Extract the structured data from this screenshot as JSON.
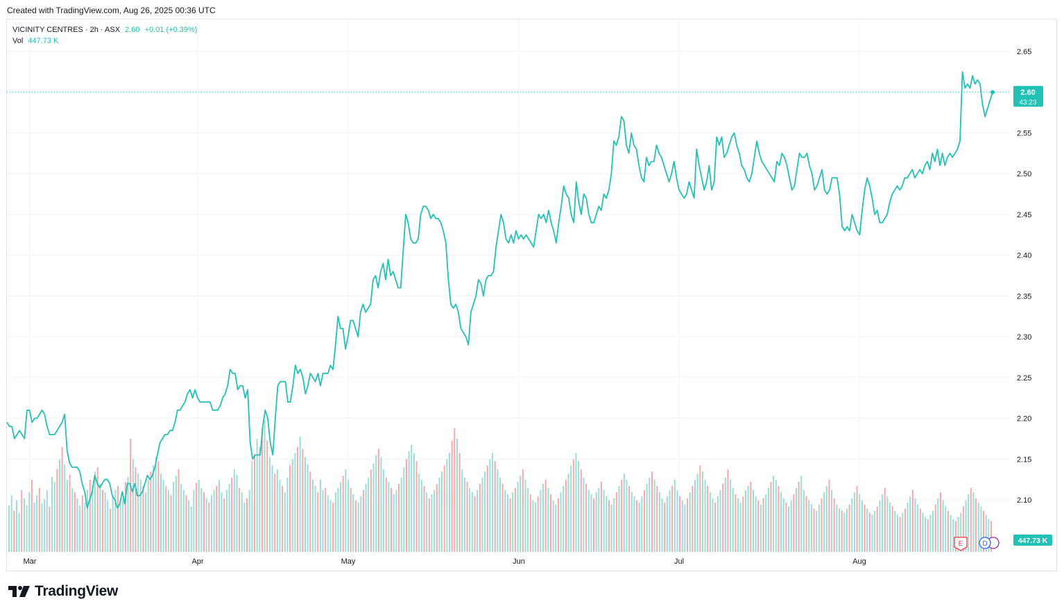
{
  "header": {
    "created_text": "Created with TradingView.com, Aug 26, 2025 00:36 UTC"
  },
  "legend": {
    "symbol": "VICINITY CENTRES · 2h · ASX",
    "last": "2.60",
    "change": "+0.01 (+0.39%)",
    "vol_label": "Vol",
    "vol_value": "447.73 K"
  },
  "price_tag": {
    "price": "2.60",
    "countdown": "43:23"
  },
  "volume_tag": "447.73 K",
  "event_markers": [
    {
      "letter": "E",
      "color": "#f23645"
    },
    {
      "letter": "D",
      "color": "#2962ff"
    }
  ],
  "brand": {
    "name": "TradingView"
  },
  "colors": {
    "line": "#22c1b5",
    "vol_up": "#9fdcd7",
    "vol_down": "#f7a9a7",
    "grid": "#f0f3fa"
  },
  "chart_data": {
    "type": "line",
    "title": "VICINITY CENTRES · 2h · ASX",
    "xlabel": "",
    "ylabel": "",
    "x_ticks": [
      "Mar",
      "Apr",
      "May",
      "Jun",
      "Jul",
      "Aug"
    ],
    "y_ticks": [
      "2.65",
      "2.60",
      "2.55",
      "2.50",
      "2.45",
      "2.40",
      "2.35",
      "2.30",
      "2.25",
      "2.20",
      "2.15",
      "2.10"
    ],
    "ylim": [
      2.05,
      2.67
    ],
    "grid": true,
    "series": [
      {
        "values": [
          2.195,
          2.19,
          2.19,
          2.175,
          2.18,
          2.185,
          2.18,
          2.175,
          2.21,
          2.21,
          2.195,
          2.2,
          2.2,
          2.205,
          2.21,
          2.205,
          2.19,
          2.18,
          2.18,
          2.18,
          2.185,
          2.19,
          2.195,
          2.205,
          2.16,
          2.145,
          2.14,
          2.14,
          2.14,
          2.135,
          2.12,
          2.11,
          2.09,
          2.1,
          2.11,
          2.13,
          2.12,
          2.115,
          2.12,
          2.125,
          2.125,
          2.12,
          2.105,
          2.1,
          2.09,
          2.095,
          2.11,
          2.095,
          2.12,
          2.12,
          2.11,
          2.12,
          2.105,
          2.105,
          2.11,
          2.12,
          2.13,
          2.125,
          2.13,
          2.14,
          2.155,
          2.17,
          2.175,
          2.18,
          2.18,
          2.185,
          2.185,
          2.195,
          2.21,
          2.21,
          2.215,
          2.22,
          2.23,
          2.235,
          2.225,
          2.235,
          2.225,
          2.22,
          2.22,
          2.22,
          2.22,
          2.22,
          2.21,
          2.21,
          2.21,
          2.215,
          2.225,
          2.23,
          2.24,
          2.26,
          2.255,
          2.255,
          2.235,
          2.24,
          2.24,
          2.225,
          2.235,
          2.17,
          2.15,
          2.155,
          2.155,
          2.155,
          2.19,
          2.21,
          2.2,
          2.17,
          2.155,
          2.2,
          2.24,
          2.245,
          2.245,
          2.245,
          2.22,
          2.22,
          2.24,
          2.265,
          2.255,
          2.26,
          2.25,
          2.23,
          2.24,
          2.255,
          2.25,
          2.245,
          2.255,
          2.24,
          2.255,
          2.255,
          2.255,
          2.265,
          2.26,
          2.29,
          2.325,
          2.31,
          2.31,
          2.285,
          2.3,
          2.32,
          2.32,
          2.31,
          2.3,
          2.33,
          2.34,
          2.33,
          2.335,
          2.34,
          2.37,
          2.375,
          2.36,
          2.38,
          2.39,
          2.37,
          2.395,
          2.375,
          2.38,
          2.37,
          2.36,
          2.36,
          2.405,
          2.45,
          2.44,
          2.42,
          2.415,
          2.415,
          2.42,
          2.45,
          2.46,
          2.46,
          2.455,
          2.445,
          2.45,
          2.445,
          2.445,
          2.44,
          2.43,
          2.415,
          2.37,
          2.34,
          2.335,
          2.34,
          2.33,
          2.31,
          2.305,
          2.3,
          2.29,
          2.33,
          2.34,
          2.35,
          2.37,
          2.365,
          2.35,
          2.37,
          2.375,
          2.375,
          2.38,
          2.41,
          2.43,
          2.45,
          2.44,
          2.42,
          2.415,
          2.425,
          2.415,
          2.43,
          2.42,
          2.425,
          2.42,
          2.425,
          2.42,
          2.415,
          2.41,
          2.43,
          2.45,
          2.445,
          2.45,
          2.44,
          2.455,
          2.44,
          2.43,
          2.415,
          2.44,
          2.46,
          2.485,
          2.475,
          2.47,
          2.45,
          2.44,
          2.49,
          2.465,
          2.45,
          2.475,
          2.47,
          2.45,
          2.44,
          2.44,
          2.45,
          2.46,
          2.455,
          2.475,
          2.47,
          2.48,
          2.5,
          2.54,
          2.535,
          2.545,
          2.57,
          2.565,
          2.535,
          2.525,
          2.55,
          2.535,
          2.53,
          2.51,
          2.495,
          2.49,
          2.52,
          2.51,
          2.515,
          2.515,
          2.535,
          2.525,
          2.52,
          2.51,
          2.5,
          2.49,
          2.5,
          2.515,
          2.495,
          2.48,
          2.475,
          2.47,
          2.475,
          2.49,
          2.48,
          2.47,
          2.53,
          2.51,
          2.495,
          2.48,
          2.49,
          2.51,
          2.48,
          2.49,
          2.545,
          2.535,
          2.545,
          2.52,
          2.525,
          2.535,
          2.545,
          2.55,
          2.535,
          2.525,
          2.51,
          2.505,
          2.495,
          2.49,
          2.5,
          2.52,
          2.54,
          2.525,
          2.515,
          2.51,
          2.505,
          2.5,
          2.495,
          2.49,
          2.515,
          2.51,
          2.525,
          2.52,
          2.51,
          2.495,
          2.48,
          2.485,
          2.505,
          2.525,
          2.52,
          2.52,
          2.525,
          2.51,
          2.5,
          2.48,
          2.485,
          2.495,
          2.505,
          2.48,
          2.475,
          2.48,
          2.495,
          2.495,
          2.495,
          2.475,
          2.435,
          2.43,
          2.435,
          2.43,
          2.45,
          2.44,
          2.43,
          2.425,
          2.455,
          2.48,
          2.495,
          2.485,
          2.47,
          2.45,
          2.455,
          2.44,
          2.44,
          2.445,
          2.45,
          2.465,
          2.475,
          2.48,
          2.485,
          2.48,
          2.485,
          2.495,
          2.495,
          2.5,
          2.505,
          2.495,
          2.5,
          2.505,
          2.5,
          2.51,
          2.515,
          2.505,
          2.525,
          2.515,
          2.53,
          2.51,
          2.525,
          2.51,
          2.52,
          2.525,
          2.52,
          2.525,
          2.53,
          2.54,
          2.625,
          2.605,
          2.61,
          2.605,
          2.62,
          2.61,
          2.615,
          2.61,
          2.585,
          2.57,
          2.58,
          2.59,
          2.6
        ]
      }
    ],
    "volume": {
      "values": [
        45,
        55,
        40,
        50,
        38,
        60,
        52,
        45,
        58,
        70,
        48,
        55,
        62,
        47,
        51,
        60,
        44,
        73,
        68,
        80,
        90,
        102,
        85,
        70,
        75,
        62,
        58,
        52,
        45,
        55,
        48,
        60,
        70,
        65,
        78,
        82,
        66,
        60,
        58,
        50,
        42,
        55,
        60,
        64,
        47,
        52,
        68,
        73,
        110,
        90,
        82,
        76,
        70,
        64,
        58,
        70,
        78,
        84,
        92,
        88,
        76,
        70,
        64,
        60,
        55,
        68,
        74,
        80,
        66,
        60,
        55,
        50,
        44,
        60,
        67,
        70,
        62,
        58,
        52,
        48,
        55,
        60,
        64,
        70,
        58,
        52,
        60,
        66,
        72,
        80,
        75,
        62,
        58,
        48,
        52,
        60,
        88,
        95,
        110,
        102,
        120,
        128,
        108,
        92,
        84,
        76,
        80,
        70,
        64,
        58,
        72,
        84,
        90,
        96,
        102,
        112,
        100,
        92,
        85,
        78,
        70,
        64,
        58,
        70,
        60,
        62,
        55,
        50,
        48,
        58,
        62,
        68,
        74,
        80,
        70,
        62,
        56,
        50,
        48,
        54,
        60,
        66,
        72,
        80,
        86,
        94,
        100,
        92,
        80,
        72,
        68,
        62,
        56,
        60,
        66,
        72,
        82,
        90,
        98,
        104,
        96,
        88,
        76,
        70,
        64,
        58,
        52,
        56,
        60,
        66,
        72,
        78,
        84,
        90,
        96,
        108,
        120,
        110,
        96,
        80,
        72,
        68,
        62,
        58,
        54,
        60,
        66,
        72,
        78,
        84,
        90,
        96,
        88,
        80,
        72,
        66,
        60,
        56,
        52,
        58,
        62,
        68,
        74,
        80,
        70,
        62,
        56,
        50,
        48,
        54,
        60,
        66,
        70,
        62,
        56,
        50,
        46,
        52,
        58,
        64,
        70,
        76,
        84,
        90,
        96,
        88,
        80,
        72,
        66,
        60,
        56,
        52,
        58,
        62,
        68,
        60,
        54,
        50,
        46,
        52,
        58,
        64,
        70,
        76,
        70,
        64,
        58,
        54,
        50,
        48,
        54,
        60,
        66,
        72,
        78,
        70,
        64,
        58,
        52,
        48,
        54,
        60,
        64,
        70,
        60,
        54,
        50,
        46,
        52,
        58,
        64,
        70,
        76,
        84,
        78,
        70,
        64,
        58,
        52,
        48,
        54,
        60,
        66,
        72,
        80,
        70,
        62,
        56,
        52,
        48,
        54,
        60,
        64,
        68,
        60,
        54,
        50,
        46,
        52,
        56,
        62,
        68,
        74,
        70,
        64,
        58,
        52,
        48,
        44,
        50,
        56,
        62,
        68,
        74,
        60,
        54,
        50,
        46,
        42,
        40,
        46,
        52,
        58,
        64,
        70,
        60,
        52,
        46,
        42,
        40,
        38,
        42,
        46,
        52,
        58,
        64,
        56,
        50,
        46,
        42,
        38,
        36,
        40,
        44,
        50,
        56,
        62,
        54,
        48,
        44,
        40,
        36,
        34,
        38,
        42,
        48,
        54,
        60,
        52,
        46,
        42,
        38,
        34,
        32,
        36,
        40,
        46,
        52,
        58,
        50,
        44,
        40,
        36,
        32,
        30,
        34,
        38,
        44,
        50,
        56,
        62,
        58,
        52,
        48,
        44,
        40,
        36,
        32,
        30
      ],
      "down": [
        false,
        false,
        true,
        false,
        false,
        true,
        false,
        false,
        false,
        true,
        false,
        false,
        true,
        false,
        false,
        false,
        true,
        false,
        false,
        true,
        false,
        true,
        false,
        false,
        true,
        false,
        true,
        false,
        false,
        true,
        false,
        false,
        true,
        false,
        false,
        true,
        false,
        true,
        false,
        false,
        true,
        false,
        false,
        true,
        false,
        false,
        true,
        false,
        true,
        false,
        true,
        false,
        false,
        true,
        false,
        false,
        true,
        false,
        false,
        true,
        false,
        false,
        true,
        false,
        true,
        false,
        false,
        true,
        false,
        false,
        true,
        false,
        false,
        false,
        true,
        false,
        false,
        true,
        false,
        true,
        false,
        false,
        true,
        false,
        false,
        true,
        false,
        false,
        true,
        false,
        false,
        true,
        false,
        false,
        true,
        false,
        false,
        true,
        false,
        false,
        true,
        false,
        true,
        false,
        false,
        true,
        false,
        false,
        true,
        false,
        false,
        true,
        false,
        false,
        true,
        false,
        true,
        false,
        false,
        true,
        false,
        false,
        true,
        false,
        false,
        true,
        false,
        false,
        true,
        false,
        false,
        false,
        true,
        false,
        false,
        true,
        false,
        true,
        false,
        false,
        true,
        false,
        false,
        true,
        false,
        false,
        true,
        false,
        false,
        true,
        false,
        true,
        false,
        false,
        true,
        false,
        false,
        true,
        false,
        false,
        false,
        true,
        false,
        false,
        true,
        false,
        true,
        false,
        false,
        true,
        false,
        false,
        true,
        false,
        false,
        true,
        true,
        false,
        true,
        false,
        false,
        true,
        false,
        false,
        true,
        false,
        true,
        false,
        false,
        true,
        false,
        false,
        true,
        false,
        false,
        true,
        false,
        false,
        true,
        false,
        true,
        false,
        false,
        true,
        false,
        false,
        true,
        false,
        false,
        true,
        false,
        false,
        true,
        false,
        true,
        false,
        false,
        true,
        false,
        false,
        true,
        false,
        false,
        true,
        false,
        false,
        true,
        false,
        true,
        false,
        false,
        true,
        false,
        false,
        true,
        false,
        false,
        true,
        false,
        false,
        true,
        false,
        true,
        false,
        false,
        true,
        false,
        false,
        true,
        false,
        false,
        true,
        false,
        false,
        true,
        false,
        true,
        false,
        false,
        true,
        false,
        false,
        true,
        false,
        false,
        true,
        false,
        false,
        true,
        false,
        true,
        false,
        false,
        true,
        false,
        false,
        true,
        false,
        false,
        true,
        false,
        false,
        true,
        false,
        true,
        false,
        false,
        true,
        false,
        false,
        true,
        false,
        false,
        true,
        false,
        false,
        true,
        false,
        true,
        false,
        false,
        true,
        false,
        false,
        true,
        false,
        false,
        true,
        false,
        false,
        true,
        false,
        true,
        false,
        false,
        true,
        false,
        false,
        true,
        false,
        false,
        true,
        false,
        false,
        true,
        false,
        true,
        false,
        false,
        true,
        false,
        false,
        true,
        false,
        false,
        true,
        false,
        false,
        true,
        false,
        true,
        false,
        false,
        true,
        false,
        false,
        true,
        false,
        false,
        true,
        false,
        false,
        true,
        false,
        true,
        false,
        false,
        true,
        false,
        false,
        true,
        false,
        false,
        true,
        false,
        false,
        true,
        false,
        true,
        false,
        false,
        true,
        false,
        false,
        true,
        false,
        false,
        true,
        false,
        false,
        true,
        false,
        true,
        false,
        false,
        true,
        false,
        false,
        true,
        false,
        false,
        true,
        false
      ]
    }
  }
}
